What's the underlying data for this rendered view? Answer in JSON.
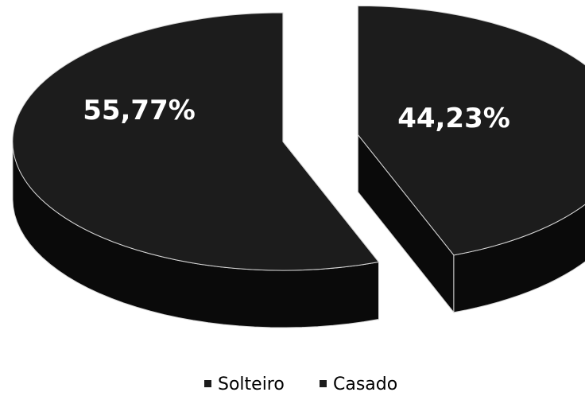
{
  "chart_data": {
    "type": "pie",
    "style": "3d-exploded",
    "categories": [
      "Solteiro",
      "Casado"
    ],
    "values": [
      55.77,
      44.23
    ],
    "value_labels": [
      "55,77%",
      "44,23%"
    ],
    "colors": {
      "top": "#1c1c1c",
      "side": "#0a0a0a",
      "edge": "#d8d8d8"
    },
    "legend_position": "bottom"
  }
}
